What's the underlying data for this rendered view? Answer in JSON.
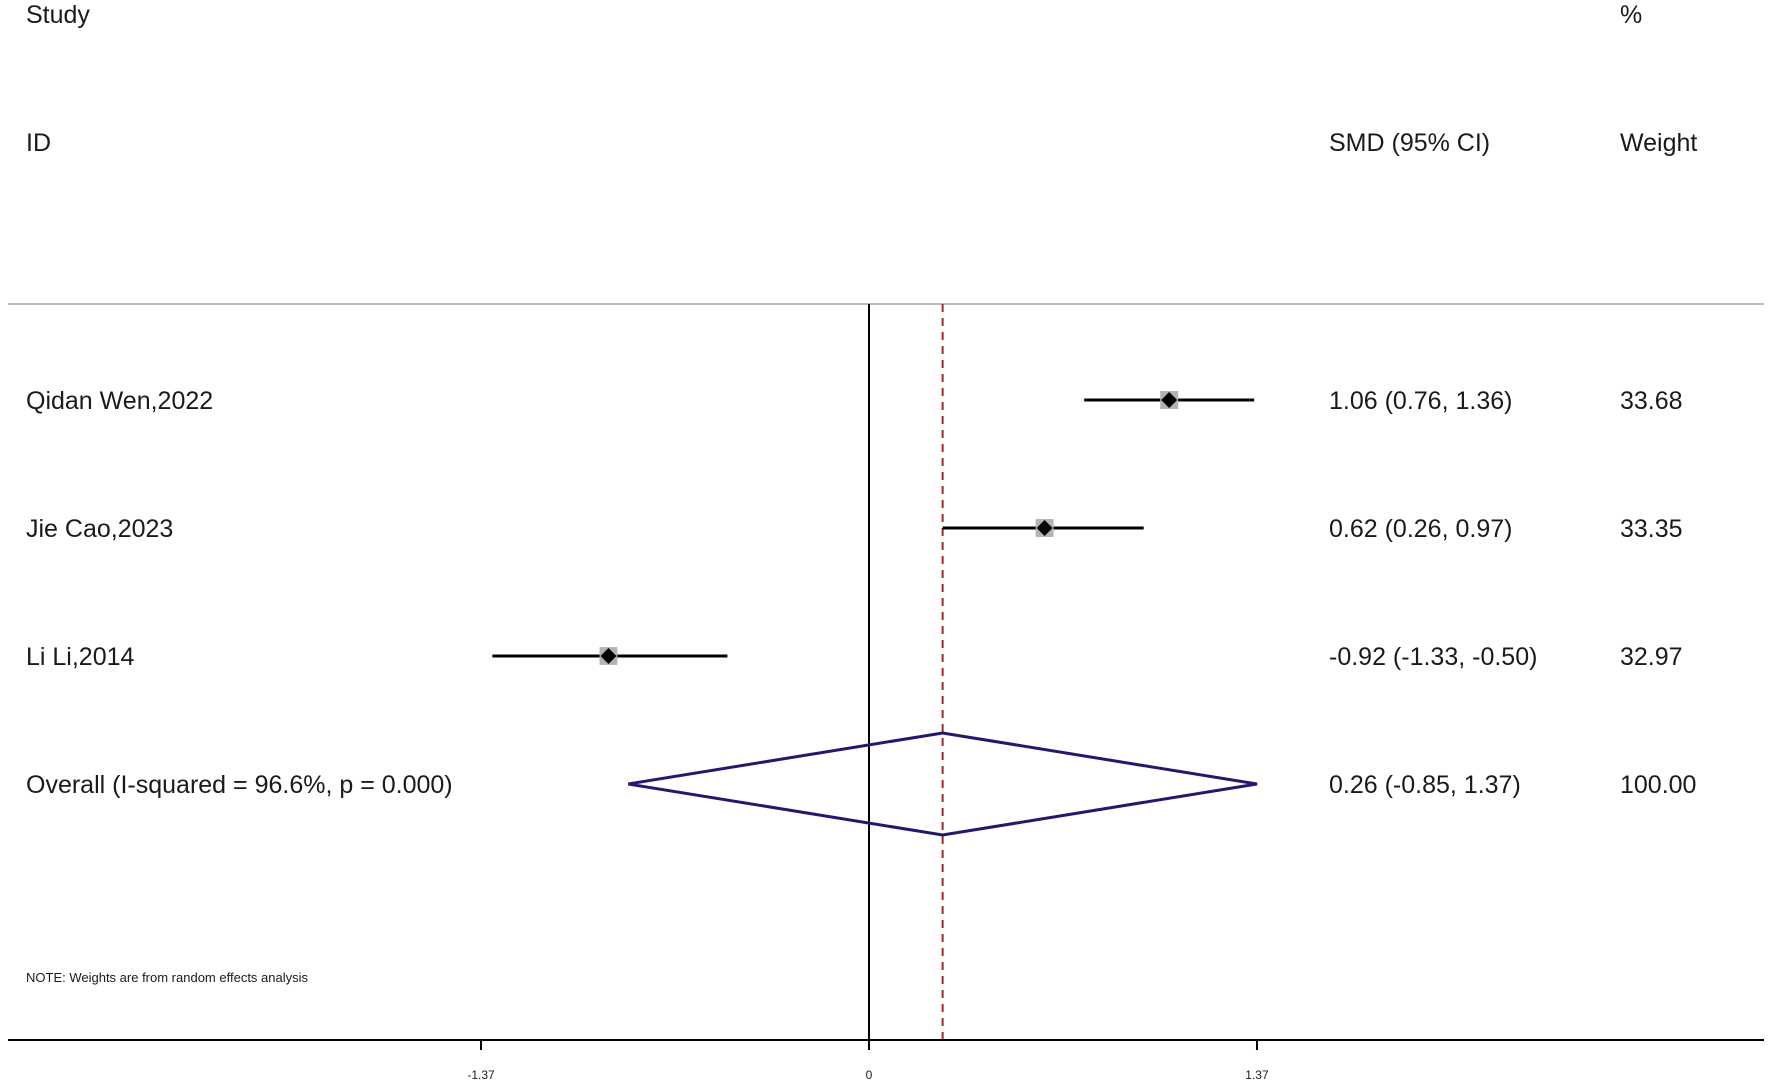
{
  "header": {
    "study_line1": "Study",
    "study_line2": "ID",
    "effect_label": "SMD (95% CI)",
    "weight_line1": "%",
    "weight_line2": "Weight"
  },
  "note": "NOTE: Weights are from random effects analysis",
  "chart_data": {
    "type": "forest",
    "effect_measure": "SMD (95% CI)",
    "x_ticks": [
      {
        "value": -1.37,
        "label": "-1.37"
      },
      {
        "value": 0,
        "label": "0"
      },
      {
        "value": 1.37,
        "label": "1.37"
      }
    ],
    "xlim": [
      -2.7,
      2.8
    ],
    "null_line": 0,
    "overall_line": 0.26,
    "studies": [
      {
        "id": "Qidan Wen,2022",
        "smd": 1.06,
        "lower": 0.76,
        "upper": 1.36,
        "ci_text": "1.06 (0.76, 1.36)",
        "weight": 33.68,
        "weight_text": "33.68"
      },
      {
        "id": "Jie Cao,2023",
        "smd": 0.62,
        "lower": 0.26,
        "upper": 0.97,
        "ci_text": "0.62 (0.26, 0.97)",
        "weight": 33.35,
        "weight_text": "33.35"
      },
      {
        "id": "Li Li,2014",
        "smd": -0.92,
        "lower": -1.33,
        "upper": -0.5,
        "ci_text": "-0.92 (-1.33, -0.50)",
        "weight": 32.97,
        "weight_text": "32.97"
      }
    ],
    "overall": {
      "label": "Overall  (I-squared = 96.6%, p = 0.000)",
      "smd": 0.26,
      "lower": -0.85,
      "upper": 1.37,
      "ci_text": "0.26 (-0.85, 1.37)",
      "weight_text": "100.00"
    },
    "colors": {
      "ci_line": "#000000",
      "point": "#000000",
      "weight_box": "#b3b3b3",
      "diamond": "#1f1a6e",
      "overall_line": "#9b2c2c",
      "axis": "#000000",
      "separator": "#bdbdbd"
    }
  }
}
